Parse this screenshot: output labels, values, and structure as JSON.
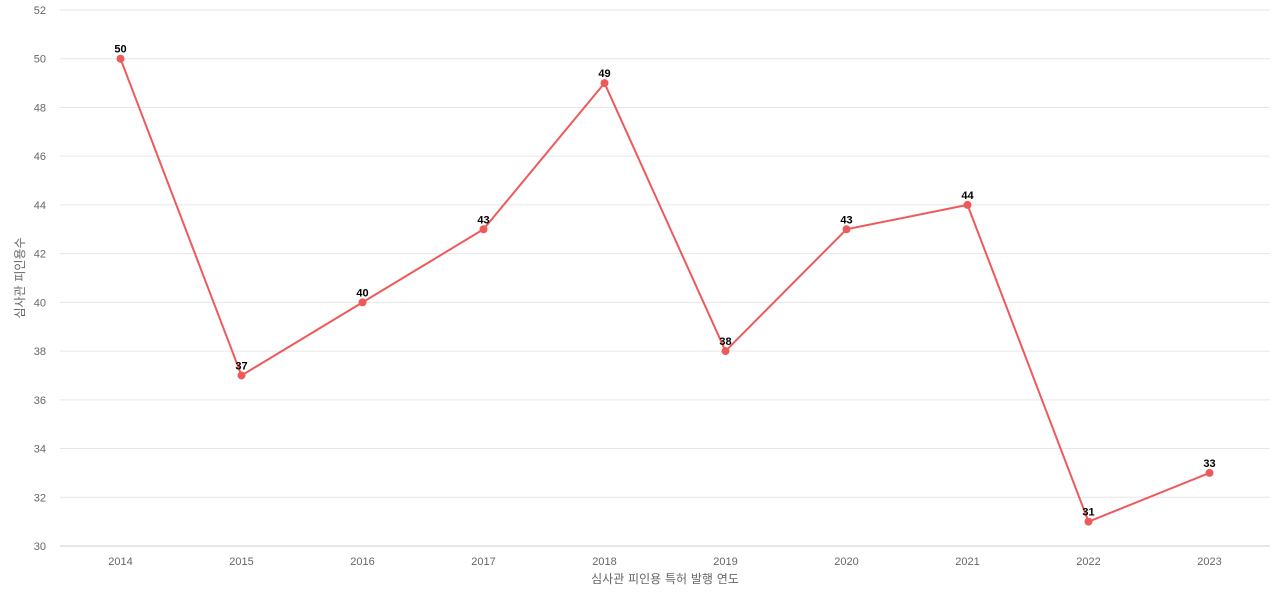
{
  "chart_data": {
    "type": "line",
    "title": "",
    "xlabel": "심사관 피인용 특허 발행 연도",
    "ylabel": "심사관 피인용수",
    "categories": [
      "2014",
      "2015",
      "2016",
      "2017",
      "2018",
      "2019",
      "2020",
      "2021",
      "2022",
      "2023"
    ],
    "series": [
      {
        "values": [
          50,
          37,
          40,
          43,
          49,
          38,
          43,
          44,
          31,
          33
        ],
        "color": "#ee5a5a"
      }
    ],
    "ylim": [
      30,
      52
    ],
    "yticks": [
      30,
      32,
      34,
      36,
      38,
      40,
      42,
      44,
      46,
      48,
      50,
      52
    ],
    "grid": true,
    "legend": "none",
    "data_labels": true
  }
}
